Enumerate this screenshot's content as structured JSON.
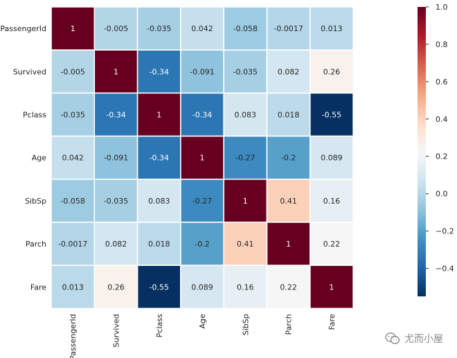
{
  "chart_data": {
    "type": "heatmap",
    "title": "",
    "xlabel": "",
    "ylabel": "",
    "rows": [
      "PassengerId",
      "Survived",
      "Pclass",
      "Age",
      "SibSp",
      "Parch",
      "Fare"
    ],
    "cols": [
      "PassengerId",
      "Survived",
      "Pclass",
      "Age",
      "SibSp",
      "Parch",
      "Fare"
    ],
    "values": [
      [
        1,
        -0.005,
        -0.035,
        0.042,
        -0.058,
        -0.0017,
        0.013
      ],
      [
        -0.005,
        1,
        -0.34,
        -0.091,
        -0.035,
        0.082,
        0.26
      ],
      [
        -0.035,
        -0.34,
        1,
        -0.34,
        0.083,
        0.018,
        -0.55
      ],
      [
        0.042,
        -0.091,
        -0.34,
        1,
        -0.27,
        -0.2,
        0.089
      ],
      [
        -0.058,
        -0.035,
        0.083,
        -0.27,
        1,
        0.41,
        0.16
      ],
      [
        -0.0017,
        0.082,
        0.018,
        -0.2,
        0.41,
        1,
        0.22
      ],
      [
        0.013,
        0.26,
        -0.55,
        0.089,
        0.16,
        0.22,
        1
      ]
    ],
    "colorbar": {
      "ticks": [
        "1.0",
        "0.8",
        "0.6",
        "0.4",
        "0.2",
        "0.0",
        "−0.2",
        "−0.4"
      ],
      "tick_values": [
        1.0,
        0.8,
        0.6,
        0.4,
        0.2,
        0.0,
        -0.2,
        -0.4
      ],
      "range": [
        -0.55,
        1.0
      ],
      "colormap": "RdBu_r"
    },
    "grid": true
  },
  "watermark": {
    "text": "尤而小屋",
    "icon": "wechat-icon"
  },
  "colors": {
    "background": "#ffffff",
    "cell_border": "#ffffff",
    "text": "#222222"
  }
}
